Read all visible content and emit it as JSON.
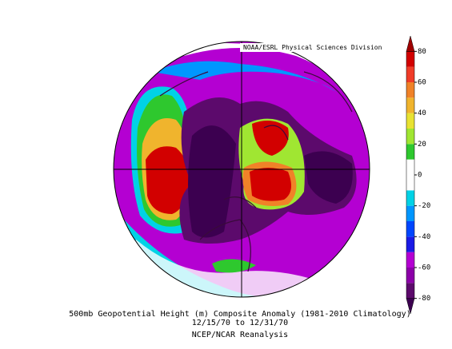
{
  "header": {
    "credit": "NOAA/ESRL Physical Sciences Division"
  },
  "caption": {
    "line1": "500mb Geopotential Height (m) Composite Anomaly (1981-2010 Climatology)",
    "line2": "12/15/70  to 12/31/70",
    "line3": "NCEP/NCAR Reanalysis"
  },
  "colorbar": {
    "range": [
      -90,
      90
    ],
    "ticks": [
      -80,
      -60,
      -40,
      -20,
      0,
      20,
      40,
      60,
      80
    ],
    "colors": [
      "#3c0050",
      "#5c0a6c",
      "#8c00a8",
      "#b400d2",
      "#1a1ae6",
      "#0046ff",
      "#0096ff",
      "#00d2e6",
      "#ffffff",
      "#ffffff",
      "#2ec82e",
      "#a0e632",
      "#e8e232",
      "#f0b42d",
      "#f08228",
      "#f03c28",
      "#d20000",
      "#a00000"
    ]
  }
}
